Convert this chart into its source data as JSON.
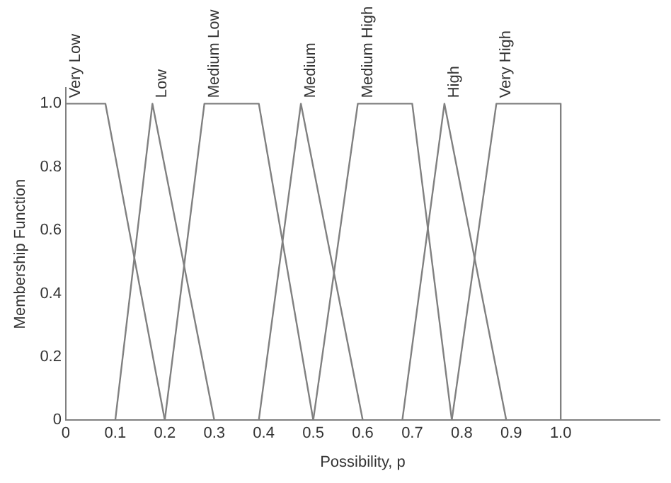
{
  "chart_data": {
    "type": "line",
    "xlabel": "Possibility, p",
    "ylabel": "Membership Function",
    "marker": "none",
    "line_style": "solid",
    "grid": false,
    "xlim": [
      0,
      1.2
    ],
    "xticks": [
      0,
      0.1,
      0.2,
      0.3,
      0.4,
      0.5,
      0.6,
      0.7,
      0.8,
      0.9,
      {
        "value": 1,
        "label": "1.0"
      }
    ],
    "ylim": [
      0,
      1.05
    ],
    "yticks": [
      0,
      0.2,
      0.4,
      0.6,
      0.8,
      {
        "value": 1,
        "label": "1.0"
      }
    ],
    "series": [
      {
        "name": "Very Low",
        "color": "#808080",
        "x": [
          0,
          0.08,
          0.2
        ],
        "values": [
          1,
          1,
          0
        ]
      },
      {
        "name": "Low",
        "color": "#808080",
        "x": [
          0.1,
          0.175,
          0.3
        ],
        "values": [
          0,
          1,
          0
        ]
      },
      {
        "name": "Medium Low",
        "color": "#808080",
        "x": [
          0.2,
          0.28,
          0.39,
          0.5
        ],
        "values": [
          0,
          1,
          1,
          0
        ]
      },
      {
        "name": "Medium",
        "color": "#808080",
        "x": [
          0.39,
          0.475,
          0.6
        ],
        "values": [
          0,
          1,
          0
        ]
      },
      {
        "name": "Medium High",
        "color": "#808080",
        "x": [
          0.5,
          0.59,
          0.7,
          0.78
        ],
        "values": [
          0,
          1,
          1,
          0
        ]
      },
      {
        "name": "High",
        "color": "#808080",
        "x": [
          0.68,
          0.765,
          0.89
        ],
        "values": [
          0,
          1,
          0
        ]
      },
      {
        "name": "Very High",
        "color": "#808080",
        "x": [
          0.78,
          0.87,
          1,
          1
        ],
        "values": [
          0,
          1,
          1,
          0
        ]
      }
    ]
  }
}
